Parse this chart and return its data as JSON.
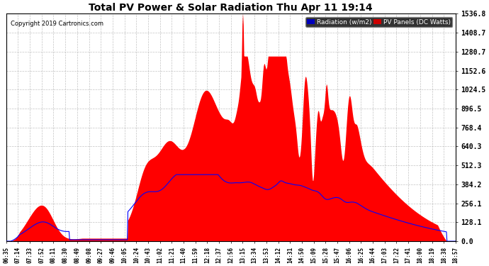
{
  "title": "Total PV Power & Solar Radiation Thu Apr 11 19:14",
  "copyright_text": "Copyright 2019 Cartronics.com",
  "legend_radiation": "Radiation (w/m2)",
  "legend_pv": "PV Panels (DC Watts)",
  "radiation_color": "#0000ff",
  "pv_color": "#ff0000",
  "radiation_legend_bg": "#0000bb",
  "pv_legend_bg": "#cc0000",
  "background_color": "#ffffff",
  "grid_color": "#aaaaaa",
  "ymax": 1536.8,
  "ymin": 0.0,
  "yticks": [
    0.0,
    128.1,
    256.1,
    384.2,
    512.3,
    640.3,
    768.4,
    896.5,
    1024.5,
    1152.6,
    1280.7,
    1408.7,
    1536.8
  ],
  "xtick_labels": [
    "06:35",
    "07:14",
    "07:33",
    "07:52",
    "08:11",
    "08:30",
    "08:49",
    "09:08",
    "09:27",
    "09:46",
    "10:05",
    "10:24",
    "10:43",
    "11:02",
    "11:21",
    "11:40",
    "11:59",
    "12:18",
    "12:37",
    "12:56",
    "13:15",
    "13:34",
    "13:53",
    "14:12",
    "14:31",
    "14:50",
    "15:09",
    "15:28",
    "15:47",
    "16:06",
    "16:25",
    "16:44",
    "17:03",
    "17:22",
    "17:41",
    "18:00",
    "18:19",
    "18:38",
    "18:57"
  ]
}
